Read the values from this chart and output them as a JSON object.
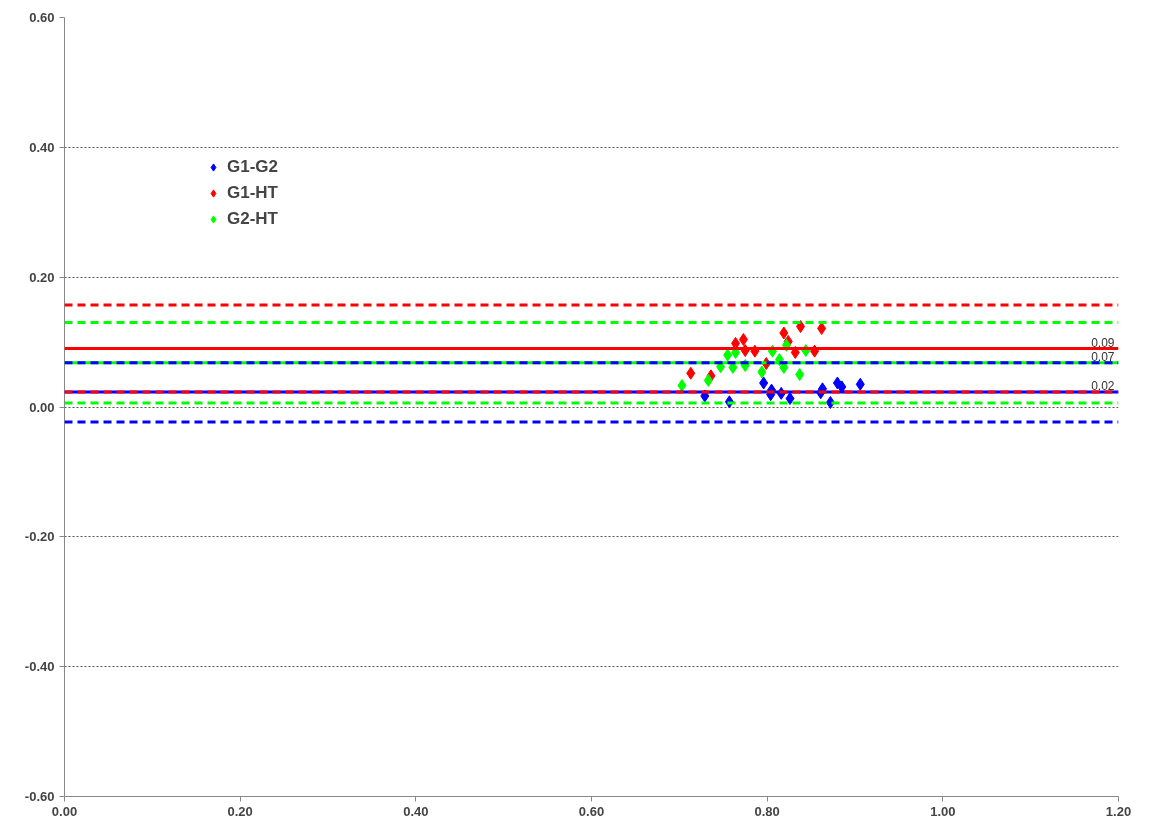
{
  "chart_data": {
    "type": "scatter",
    "marker": "diamond",
    "legend": "top left",
    "grid": "y",
    "xlim": [
      0,
      1.2
    ],
    "ylim": [
      -0.6,
      0.6
    ],
    "xticks": [
      {
        "value": 0,
        "label": "0.00"
      },
      {
        "value": 0.2,
        "label": "0.20"
      },
      {
        "value": 0.4,
        "label": "0.40"
      },
      {
        "value": 0.6,
        "label": "0.60"
      },
      {
        "value": 0.8,
        "label": "0.80"
      },
      {
        "value": 1.0,
        "label": "1.00"
      },
      {
        "value": 1.2,
        "label": "1.20"
      }
    ],
    "yticks": [
      {
        "value": -0.6,
        "label": "-0.60"
      },
      {
        "value": -0.4,
        "label": "-0.40"
      },
      {
        "value": -0.2,
        "label": "-0.20"
      },
      {
        "value": 0,
        "label": "0.00"
      },
      {
        "value": 0.2,
        "label": "0.20"
      },
      {
        "value": 0.4,
        "label": "0.40"
      },
      {
        "value": 0.6,
        "label": "0.60"
      }
    ],
    "series": [
      {
        "name": "G1-G2",
        "color": "#0000ff",
        "x": [
          0.729,
          0.757,
          0.796,
          0.805,
          0.804,
          0.816,
          0.826,
          0.863,
          0.861,
          0.872,
          0.88,
          0.885,
          0.906
        ],
        "values": [
          0.017,
          0.008,
          0.037,
          0.026,
          0.019,
          0.021,
          0.013,
          0.028,
          0.022,
          0.007,
          0.037,
          0.031,
          0.035
        ]
      },
      {
        "name": "G1-HT",
        "color": "#ff0000",
        "x": [
          0.713,
          0.736,
          0.764,
          0.773,
          0.775,
          0.786,
          0.799,
          0.819,
          0.824,
          0.832,
          0.838,
          0.854,
          0.862
        ],
        "values": [
          0.052,
          0.048,
          0.098,
          0.104,
          0.087,
          0.086,
          0.067,
          0.114,
          0.101,
          0.084,
          0.124,
          0.086,
          0.121
        ]
      },
      {
        "name": "G2-HT",
        "color": "#00ff00",
        "x": [
          0.703,
          0.733,
          0.747,
          0.755,
          0.764,
          0.761,
          0.775,
          0.794,
          0.806,
          0.814,
          0.819,
          0.822,
          0.837,
          0.844
        ],
        "values": [
          0.033,
          0.041,
          0.062,
          0.08,
          0.084,
          0.061,
          0.064,
          0.054,
          0.086,
          0.073,
          0.061,
          0.095,
          0.05,
          0.087
        ]
      }
    ],
    "ref_lines": [
      {
        "axis": "y",
        "value": 0.157,
        "color": "#ff0000",
        "line_style": "dashed"
      },
      {
        "axis": "y",
        "value": 0.13,
        "color": "#00ff00",
        "line_style": "dashed"
      },
      {
        "axis": "y",
        "value": 0.09,
        "color": "#ff0000",
        "line_style": "solid",
        "label": "0.09"
      },
      {
        "axis": "y",
        "value": 0.068,
        "color": "#00ff00",
        "line_style": "solid",
        "label": "0.07"
      },
      {
        "axis": "y",
        "value": 0.068,
        "color": "#0000ff",
        "line_style": "dashed"
      },
      {
        "axis": "y",
        "value": 0.023,
        "color": "#0000ff",
        "line_style": "solid",
        "label": "0.02"
      },
      {
        "axis": "y",
        "value": 0.023,
        "color": "#ff0000",
        "line_style": "dashed"
      },
      {
        "axis": "y",
        "value": 0.006,
        "color": "#00ff00",
        "line_style": "dashed"
      },
      {
        "axis": "y",
        "value": -0.023,
        "color": "#0000ff",
        "line_style": "dashed"
      }
    ]
  }
}
